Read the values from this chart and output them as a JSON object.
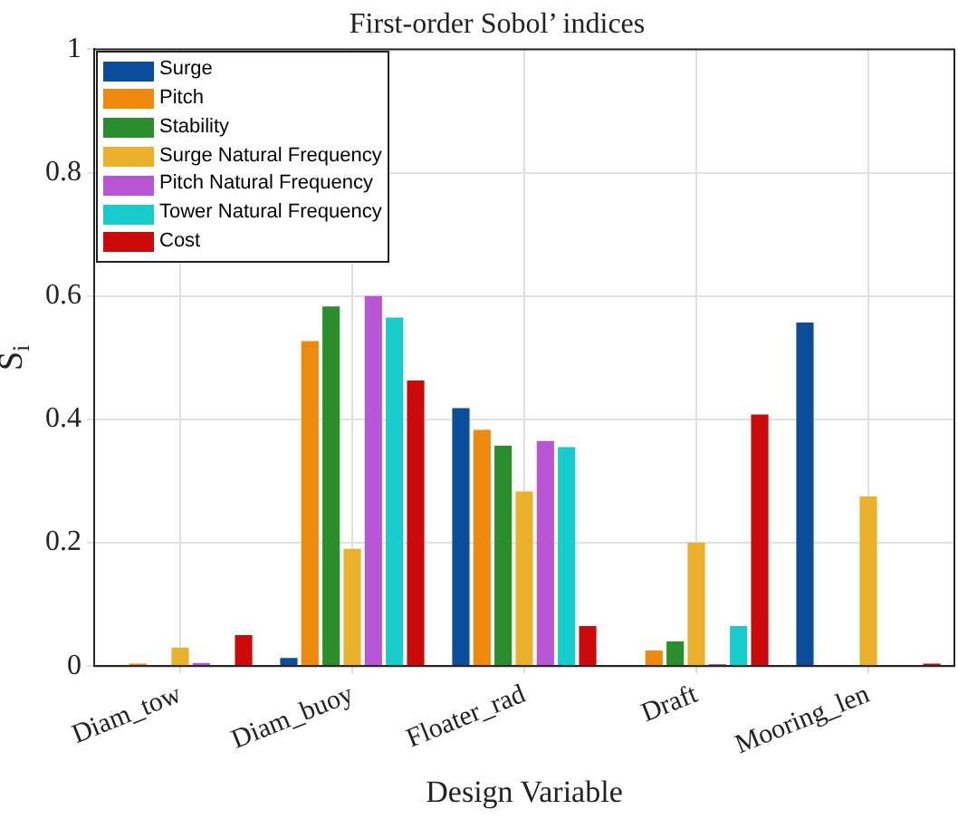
{
  "chart_data": {
    "type": "bar",
    "title": "First-order Sobol’ indices",
    "xlabel": "Design Variable",
    "ylabel": "S$_{i}$",
    "categories": [
      "Diam_tow",
      "Diam_buoy",
      "Floater_rad",
      "Draft",
      "Mooring_len"
    ],
    "series": [
      {
        "name": "Surge",
        "color": "#0a4d9a",
        "values": [
          0,
          0.013,
          0.418,
          0,
          0.557
        ]
      },
      {
        "name": "Pitch",
        "color": "#ef8a0c",
        "values": [
          0.004,
          0.527,
          0.383,
          0.025,
          0
        ]
      },
      {
        "name": "Stability",
        "color": "#2b8e2d",
        "values": [
          0,
          0.583,
          0.357,
          0.04,
          0
        ]
      },
      {
        "name": "Surge Natural Frequency",
        "color": "#ebb12a",
        "values": [
          0.03,
          0.19,
          0.283,
          0.2,
          0.275
        ]
      },
      {
        "name": "Pitch Natural Frequency",
        "color": "#b856d6",
        "values": [
          0.005,
          0.6,
          0.365,
          0.003,
          0
        ]
      },
      {
        "name": "Tower Natural Frequency",
        "color": "#16cccc",
        "values": [
          0,
          0.565,
          0.355,
          0.065,
          0
        ]
      },
      {
        "name": "Cost",
        "color": "#cc0a0a",
        "values": [
          0.05,
          0.463,
          0.065,
          0.408,
          0.004
        ]
      }
    ],
    "ylim": [
      0,
      1
    ],
    "yticks": [
      0,
      0.2,
      0.4,
      0.6,
      0.8,
      1
    ],
    "grid": true,
    "legend": "top left"
  }
}
